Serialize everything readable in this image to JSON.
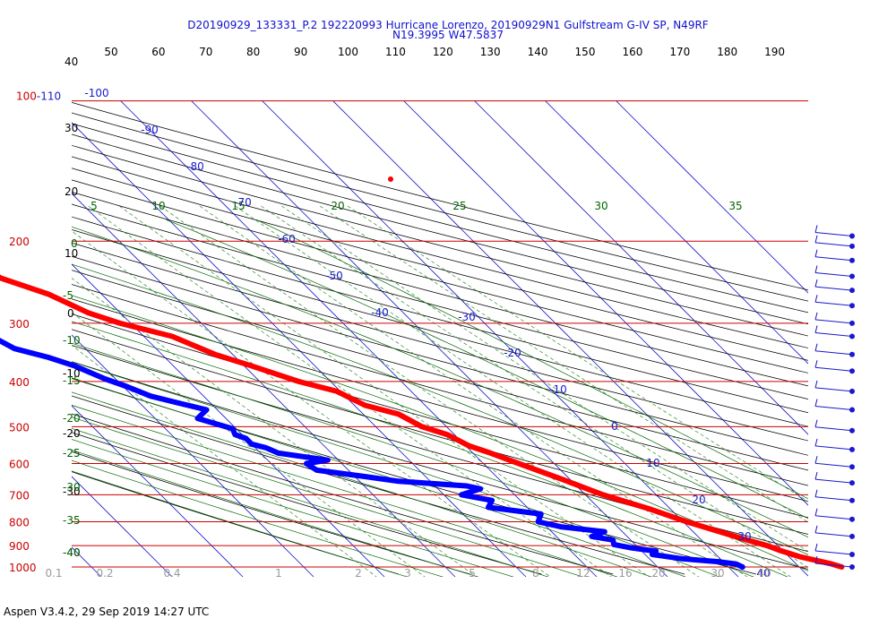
{
  "header": {
    "title_line1": "D20190929_133331_P.2 192220993 Hurricane Lorenzo, 20190929N1 Gulfstream G-IV SP, N49RF",
    "title_line2": "N19.3995 W47.5837"
  },
  "footer": {
    "version": "Aspen V3.4.2, 29 Sep 2019  14:27 UTC"
  },
  "colors": {
    "isobar": "#cc0000",
    "isotherm": "#1a1acc",
    "dry_adiabat": "#000000",
    "moist_adiabat": "#006600",
    "mixing_ratio": "#2a8a2a",
    "temperature": "#ff0000",
    "dewpoint": "#0000ff",
    "left_black_labels": "#000000"
  },
  "chart_data": {
    "type": "skew-t log-p sounding",
    "pressure_axis_hpa": [
      "100-110",
      "200",
      "300",
      "400",
      "500",
      "600",
      "700",
      "800",
      "900",
      "1000"
    ],
    "top_axis_labels": [
      "50",
      "60",
      "70",
      "80",
      "90",
      "100",
      "110",
      "120",
      "130",
      "140",
      "150",
      "160",
      "170",
      "180",
      "190"
    ],
    "left_black_labels": [
      "40",
      "30",
      "20",
      "10",
      "0",
      "-10",
      "-20",
      "-30",
      "-40"
    ],
    "moist_adiabat_labels": [
      "0",
      "-5",
      "-10",
      "-15",
      "-20",
      "-25",
      "-30",
      "-35",
      "-40"
    ],
    "mixing_ratio_top_labels": [
      "5",
      "10",
      "15",
      "20",
      "25",
      "30",
      "35"
    ],
    "isotherm_labels": [
      "-100",
      "-90",
      "-80",
      "-70",
      "-60",
      "-50",
      "-40",
      "-30",
      "-20",
      "-10",
      "0",
      "10",
      "20",
      "30",
      "40"
    ],
    "bottom_labels": [
      "0.1",
      "0.2",
      "0.4",
      "1",
      "2",
      "3",
      "5",
      "8",
      "12",
      "16",
      "20",
      "30",
      "40"
    ],
    "temperature_c": {
      "pressure": [
        1000,
        985,
        950,
        920,
        900,
        870,
        850,
        800,
        750,
        700,
        650,
        600,
        570,
        550,
        520,
        500,
        470,
        450,
        420,
        400,
        370,
        350,
        320,
        300,
        285,
        260,
        240,
        230,
        220,
        205,
        195,
        188
      ],
      "values": [
        26.0,
        25.0,
        21.5,
        19.5,
        18.5,
        16.0,
        14.5,
        10.5,
        7.0,
        2.5,
        -1.0,
        -5.0,
        -7.5,
        -9.5,
        -11.0,
        -13.5,
        -15.0,
        -18.5,
        -20.5,
        -24.5,
        -29.0,
        -32.5,
        -36.0,
        -41.5,
        -44.5,
        -47.5,
        -52.0,
        -52.5,
        -56.5,
        -57.0,
        -58.5,
        -58.5
      ]
    },
    "dewpoint_c": {
      "pressure": [
        1000,
        985,
        975,
        960,
        940,
        925,
        910,
        895,
        875,
        860,
        840,
        820,
        800,
        770,
        745,
        720,
        700,
        680,
        670,
        655,
        640,
        620,
        600,
        590,
        570,
        555,
        545,
        530,
        520,
        505,
        480,
        460,
        445,
        430,
        410,
        395,
        370,
        355,
        340,
        320,
        300,
        280,
        260,
        245,
        230,
        210
      ],
      "values": [
        12.0,
        11.5,
        9.5,
        4.5,
        1.0,
        2.0,
        -1.0,
        -3.0,
        -2.5,
        -5.0,
        -2.5,
        -8.0,
        -10.5,
        -9.0,
        -15.5,
        -14.0,
        -17.5,
        -14.0,
        -15.5,
        -24.5,
        -28.5,
        -34.5,
        -35.0,
        -31.5,
        -37.5,
        -38.5,
        -40.0,
        -40.0,
        -41.0,
        -40.5,
        -44.0,
        -41.5,
        -44.5,
        -47.5,
        -49.5,
        -51.5,
        -54.0,
        -56.5,
        -60.0,
        -61.5,
        -63.5,
        -64.0,
        -69.0,
        -74.0,
        -77.5,
        -84.0
      ]
    },
    "wind_barb_pressures": [
      195,
      205,
      220,
      238,
      255,
      275,
      300,
      320,
      350,
      380,
      420,
      460,
      510,
      560,
      610,
      660,
      720,
      790,
      860,
      940,
      1000
    ]
  }
}
